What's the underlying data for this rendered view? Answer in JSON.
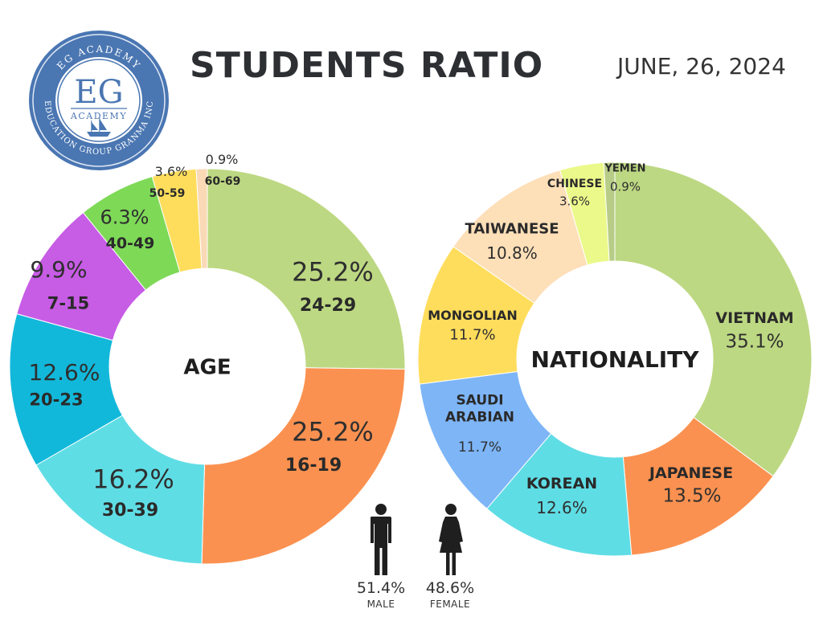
{
  "header": {
    "title": "STUDENTS RATIO",
    "date": "JUNE, 26, 2024"
  },
  "logo": {
    "ring_top": "EG ACADEMY",
    "initials": "EG",
    "sub": "ACADEMY",
    "ring_bottom": "EDUCATION GROUP GRANMA INC"
  },
  "gender": {
    "male": {
      "pct": "51.4%",
      "label": "MALE",
      "icon": "male-person-icon"
    },
    "female": {
      "pct": "48.6%",
      "label": "FEMALE",
      "icon": "female-person-icon"
    }
  },
  "chart_data": [
    {
      "type": "pie",
      "donut": true,
      "center_label": "AGE",
      "slices": [
        {
          "category": "24-29",
          "value": 25.2,
          "label": "25.2%",
          "color": "#bdd882"
        },
        {
          "category": "16-19",
          "value": 25.2,
          "label": "25.2%",
          "color": "#fb9150"
        },
        {
          "category": "30-39",
          "value": 16.2,
          "label": "16.2%",
          "color": "#5fdde5"
        },
        {
          "category": "20-23",
          "value": 12.6,
          "label": "12.6%",
          "color": "#12b8da"
        },
        {
          "category": "7-15",
          "value": 9.9,
          "label": "9.9%",
          "color": "#c75ce5"
        },
        {
          "category": "40-49",
          "value": 6.3,
          "label": "6.3%",
          "color": "#7ed957"
        },
        {
          "category": "50-59",
          "value": 3.6,
          "label": "3.6%",
          "color": "#ffdd5c"
        },
        {
          "category": "60-69",
          "value": 0.9,
          "label": "0.9%",
          "color": "#f9d9b6"
        }
      ]
    },
    {
      "type": "pie",
      "donut": true,
      "center_label": "NATIONALITY",
      "slices": [
        {
          "category": "VIETNAM",
          "value": 35.1,
          "label": "35.1%",
          "color": "#bdd882"
        },
        {
          "category": "JAPANESE",
          "value": 13.5,
          "label": "13.5%",
          "color": "#fb9150"
        },
        {
          "category": "KOREAN",
          "value": 12.6,
          "label": "12.6%",
          "color": "#5fdde5"
        },
        {
          "category": "SAUDI ARABIAN",
          "lines": [
            "SAUDI",
            "ARABIAN"
          ],
          "value": 11.7,
          "label": "11.7%",
          "color": "#7db5f7"
        },
        {
          "category": "MONGOLIAN",
          "value": 11.7,
          "label": "11.7%",
          "color": "#ffdd5c"
        },
        {
          "category": "TAIWANESE",
          "value": 10.8,
          "label": "10.8%",
          "color": "#fddfb8"
        },
        {
          "category": "CHINESE",
          "value": 3.6,
          "label": "3.6%",
          "color": "#ebf98a"
        },
        {
          "category": "YEMEN",
          "value": 0.9,
          "label": "0.9%",
          "color": "#b7cc86"
        }
      ]
    }
  ]
}
